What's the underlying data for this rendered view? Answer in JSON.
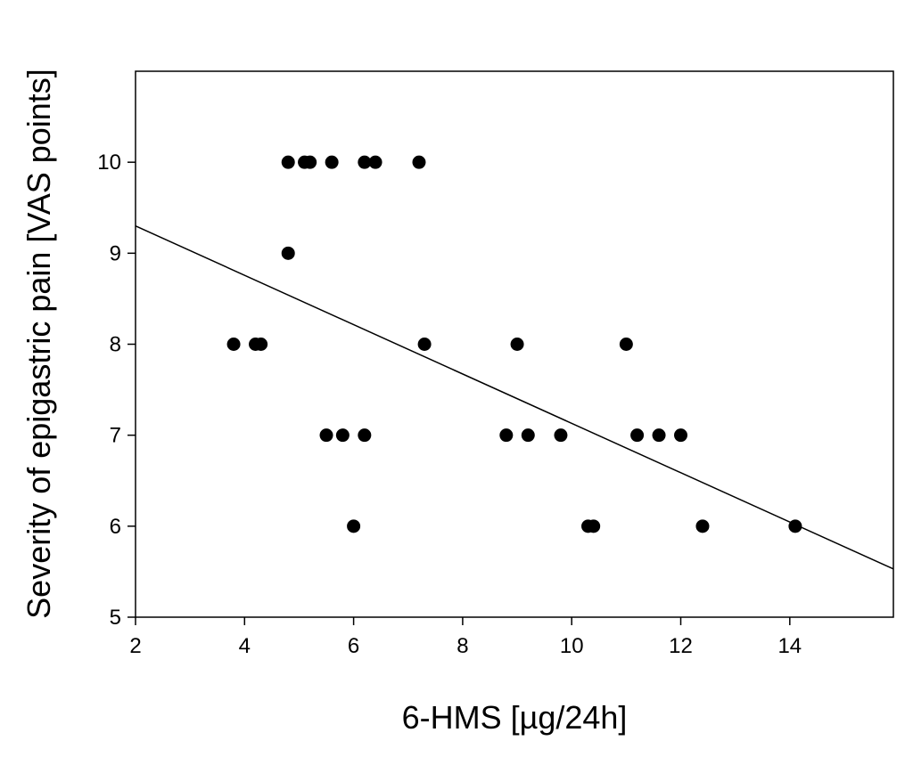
{
  "chart_data": {
    "type": "scatter",
    "xlabel": "6-HMS [µg/24h]",
    "ylabel": "Severity of epigastric pain [VAS points]",
    "xlim": [
      2,
      15.9
    ],
    "ylim": [
      5,
      11.0
    ],
    "xticks": [
      2,
      4,
      6,
      8,
      10,
      12,
      14
    ],
    "yticks": [
      5,
      6,
      7,
      8,
      9,
      10
    ],
    "grid": false,
    "marker_color": "#000000",
    "points": [
      {
        "x": 3.8,
        "y": 8
      },
      {
        "x": 4.2,
        "y": 8
      },
      {
        "x": 4.3,
        "y": 8
      },
      {
        "x": 4.8,
        "y": 10
      },
      {
        "x": 4.8,
        "y": 9
      },
      {
        "x": 5.1,
        "y": 10
      },
      {
        "x": 5.2,
        "y": 10
      },
      {
        "x": 5.6,
        "y": 10
      },
      {
        "x": 5.5,
        "y": 7
      },
      {
        "x": 5.8,
        "y": 7
      },
      {
        "x": 6.0,
        "y": 6
      },
      {
        "x": 6.2,
        "y": 10
      },
      {
        "x": 6.4,
        "y": 10
      },
      {
        "x": 6.2,
        "y": 7
      },
      {
        "x": 7.2,
        "y": 10
      },
      {
        "x": 7.3,
        "y": 8
      },
      {
        "x": 8.8,
        "y": 7
      },
      {
        "x": 9.0,
        "y": 8
      },
      {
        "x": 9.2,
        "y": 7
      },
      {
        "x": 9.8,
        "y": 7
      },
      {
        "x": 10.3,
        "y": 6
      },
      {
        "x": 10.4,
        "y": 6
      },
      {
        "x": 11.0,
        "y": 8
      },
      {
        "x": 11.2,
        "y": 7
      },
      {
        "x": 11.6,
        "y": 7
      },
      {
        "x": 12.0,
        "y": 7
      },
      {
        "x": 12.4,
        "y": 6
      },
      {
        "x": 14.1,
        "y": 6
      }
    ],
    "trendline": {
      "x": [
        2,
        15.9
      ],
      "y": [
        9.3,
        5.53
      ]
    }
  }
}
